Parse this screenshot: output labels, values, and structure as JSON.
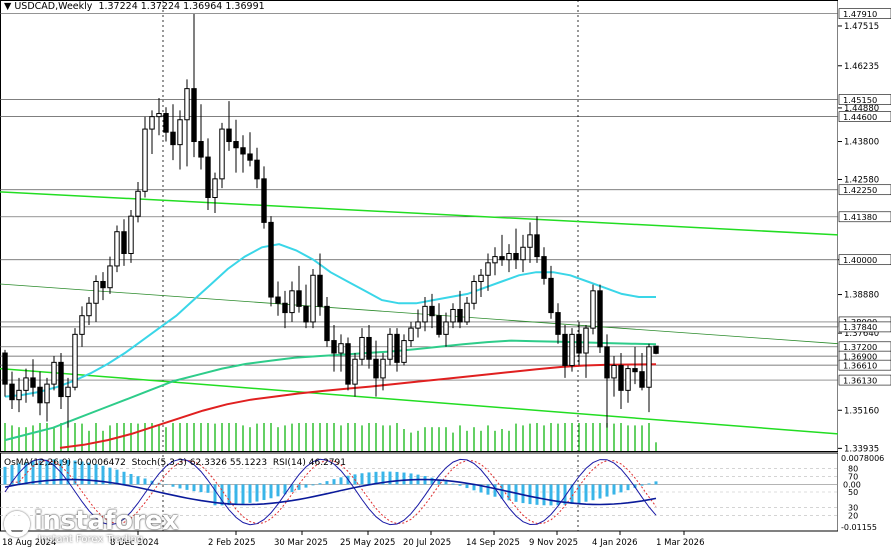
{
  "header": {
    "symbol": "USDCAD,Weekly",
    "ohlc": "1.37224 1.37224 1.36964 1.36991",
    "arrow": "▼"
  },
  "sub_header": {
    "osma": "OsMA(12,26,9) -0.0006472",
    "stoch": "Stoch(5,3,3) 62.3326 55.1223",
    "rsi": "RSI(14) 46.2791"
  },
  "logo": {
    "brand": "instaforex",
    "tagline": "Instant Forex Trading"
  },
  "colors": {
    "ma_fast": "#3ad6e8",
    "ma_mid": "#2ecc8a",
    "ma_slow": "#e02020",
    "channel": "#22dd22",
    "osma_bar": "#39b5e8",
    "stoch_main": "#1a1aa6",
    "stoch_signal": "#e03030",
    "volume": "#22bb22"
  },
  "chart_data": {
    "type": "candlestick",
    "timeframe": "Weekly",
    "symbol": "USDCAD",
    "price_axis_ticks": [
      "1.47515",
      "1.46235",
      "1.44880",
      "1.43800",
      "1.42580",
      "1.40000",
      "1.38880",
      "1.37640",
      "1.35160",
      "1.33935"
    ],
    "price_level_labels": [
      {
        "value": 1.4791,
        "label": "1.47910"
      },
      {
        "value": 1.4515,
        "label": "1.45150"
      },
      {
        "value": 1.446,
        "label": "1.44600"
      },
      {
        "value": 1.4225,
        "label": "1.42250"
      },
      {
        "value": 1.4138,
        "label": "1.41380"
      },
      {
        "value": 1.4,
        "label": "1.40000"
      },
      {
        "value": 1.38,
        "label": "1.38000"
      },
      {
        "value": 1.3784,
        "label": "1.37840"
      },
      {
        "value": 1.372,
        "label": "1.37200"
      },
      {
        "value": 1.369,
        "label": "1.36900"
      },
      {
        "value": 1.3661,
        "label": "1.36610"
      },
      {
        "value": 1.3613,
        "label": "1.36130"
      }
    ],
    "x_labels": [
      "18 Aug 2024",
      "8 Dec 2024",
      "2 Feb 2025",
      "30 Mar 2025",
      "25 May 2025",
      "20 Jul 2025",
      "14 Sep 2025",
      "9 Nov 2025",
      "4 Jan 2026",
      "1 Mar 2026"
    ],
    "y_range": [
      1.3385,
      1.4835
    ],
    "candles": [
      [
        1.37,
        1.371,
        1.356,
        1.36
      ],
      [
        1.36,
        1.364,
        1.352,
        1.355
      ],
      [
        1.355,
        1.362,
        1.351,
        1.358
      ],
      [
        1.358,
        1.365,
        1.354,
        1.362
      ],
      [
        1.362,
        1.368,
        1.356,
        1.359
      ],
      [
        1.359,
        1.364,
        1.35,
        1.354
      ],
      [
        1.354,
        1.362,
        1.348,
        1.36
      ],
      [
        1.36,
        1.369,
        1.358,
        1.367
      ],
      [
        1.367,
        1.37,
        1.352,
        1.356
      ],
      [
        1.356,
        1.362,
        1.346,
        1.359
      ],
      [
        1.359,
        1.378,
        1.358,
        1.376
      ],
      [
        1.376,
        1.385,
        1.372,
        1.382
      ],
      [
        1.382,
        1.388,
        1.379,
        1.386
      ],
      [
        1.386,
        1.395,
        1.38,
        1.393
      ],
      [
        1.393,
        1.396,
        1.387,
        1.391
      ],
      [
        1.391,
        1.401,
        1.389,
        1.398
      ],
      [
        1.398,
        1.411,
        1.396,
        1.409
      ],
      [
        1.409,
        1.413,
        1.398,
        1.402
      ],
      [
        1.402,
        1.416,
        1.399,
        1.414
      ],
      [
        1.414,
        1.425,
        1.412,
        1.422
      ],
      [
        1.422,
        1.446,
        1.42,
        1.442
      ],
      [
        1.442,
        1.448,
        1.434,
        1.446
      ],
      [
        1.446,
        1.452,
        1.44,
        1.447
      ],
      [
        1.447,
        1.449,
        1.438,
        1.441
      ],
      [
        1.441,
        1.45,
        1.432,
        1.437
      ],
      [
        1.437,
        1.448,
        1.429,
        1.445
      ],
      [
        1.445,
        1.458,
        1.43,
        1.455
      ],
      [
        1.455,
        1.479,
        1.433,
        1.438
      ],
      [
        1.438,
        1.45,
        1.429,
        1.433
      ],
      [
        1.433,
        1.439,
        1.416,
        1.42
      ],
      [
        1.42,
        1.428,
        1.415,
        1.426
      ],
      [
        1.426,
        1.444,
        1.423,
        1.442
      ],
      [
        1.442,
        1.451,
        1.435,
        1.438
      ],
      [
        1.438,
        1.445,
        1.428,
        1.436
      ],
      [
        1.436,
        1.44,
        1.428,
        1.434
      ],
      [
        1.434,
        1.441,
        1.43,
        1.432
      ],
      [
        1.432,
        1.436,
        1.423,
        1.426
      ],
      [
        1.426,
        1.43,
        1.41,
        1.412
      ],
      [
        1.412,
        1.414,
        1.385,
        1.388
      ],
      [
        1.388,
        1.393,
        1.382,
        1.386
      ],
      [
        1.386,
        1.39,
        1.378,
        1.383
      ],
      [
        1.383,
        1.393,
        1.38,
        1.39
      ],
      [
        1.39,
        1.398,
        1.383,
        1.385
      ],
      [
        1.385,
        1.392,
        1.378,
        1.38
      ],
      [
        1.38,
        1.397,
        1.378,
        1.395
      ],
      [
        1.395,
        1.402,
        1.382,
        1.385
      ],
      [
        1.385,
        1.388,
        1.372,
        1.374
      ],
      [
        1.374,
        1.379,
        1.364,
        1.37
      ],
      [
        1.37,
        1.376,
        1.364,
        1.373
      ],
      [
        1.373,
        1.375,
        1.358,
        1.36
      ],
      [
        1.36,
        1.37,
        1.356,
        1.368
      ],
      [
        1.368,
        1.378,
        1.366,
        1.375
      ],
      [
        1.375,
        1.379,
        1.365,
        1.368
      ],
      [
        1.368,
        1.374,
        1.356,
        1.362
      ],
      [
        1.362,
        1.37,
        1.358,
        1.368
      ],
      [
        1.368,
        1.378,
        1.366,
        1.376
      ],
      [
        1.376,
        1.378,
        1.364,
        1.367
      ],
      [
        1.367,
        1.376,
        1.366,
        1.374
      ],
      [
        1.374,
        1.38,
        1.372,
        1.378
      ],
      [
        1.378,
        1.384,
        1.375,
        1.38
      ],
      [
        1.38,
        1.388,
        1.377,
        1.385
      ],
      [
        1.385,
        1.389,
        1.378,
        1.382
      ],
      [
        1.382,
        1.386,
        1.375,
        1.376
      ],
      [
        1.376,
        1.383,
        1.372,
        1.38
      ],
      [
        1.38,
        1.386,
        1.378,
        1.384
      ],
      [
        1.384,
        1.39,
        1.378,
        1.38
      ],
      [
        1.38,
        1.388,
        1.379,
        1.386
      ],
      [
        1.386,
        1.395,
        1.384,
        1.393
      ],
      [
        1.393,
        1.397,
        1.388,
        1.395
      ],
      [
        1.395,
        1.402,
        1.39,
        1.399
      ],
      [
        1.399,
        1.404,
        1.395,
        1.401
      ],
      [
        1.401,
        1.408,
        1.398,
        1.4
      ],
      [
        1.4,
        1.405,
        1.396,
        1.402
      ],
      [
        1.402,
        1.41,
        1.397,
        1.4
      ],
      [
        1.4,
        1.408,
        1.396,
        1.404
      ],
      [
        1.404,
        1.412,
        1.399,
        1.408
      ],
      [
        1.408,
        1.414,
        1.399,
        1.401
      ],
      [
        1.401,
        1.404,
        1.392,
        1.394
      ],
      [
        1.394,
        1.398,
        1.381,
        1.383
      ],
      [
        1.383,
        1.386,
        1.373,
        1.376
      ],
      [
        1.376,
        1.379,
        1.362,
        1.366
      ],
      [
        1.366,
        1.378,
        1.364,
        1.376
      ],
      [
        1.376,
        1.38,
        1.366,
        1.37
      ],
      [
        1.37,
        1.379,
        1.362,
        1.378
      ],
      [
        1.378,
        1.392,
        1.376,
        1.39
      ],
      [
        1.39,
        1.392,
        1.37,
        1.372
      ],
      [
        1.372,
        1.376,
        1.346,
        1.362
      ],
      [
        1.362,
        1.369,
        1.356,
        1.366
      ],
      [
        1.366,
        1.37,
        1.352,
        1.358
      ],
      [
        1.358,
        1.366,
        1.354,
        1.365
      ],
      [
        1.365,
        1.372,
        1.36,
        1.364
      ],
      [
        1.364,
        1.37,
        1.358,
        1.359
      ],
      [
        1.359,
        1.373,
        1.351,
        1.372
      ],
      [
        1.3722,
        1.3722,
        1.3696,
        1.3699
      ]
    ],
    "ma_fast": [
      1.356,
      1.3565,
      1.3575,
      1.359,
      1.361,
      1.3635,
      1.3665,
      1.37,
      1.374,
      1.378,
      1.382,
      1.387,
      1.392,
      1.397,
      1.401,
      1.404,
      1.405,
      1.403,
      1.4,
      1.396,
      1.393,
      1.39,
      1.387,
      1.386,
      1.386,
      1.387,
      1.388,
      1.389,
      1.391,
      1.393,
      1.395,
      1.396,
      1.396,
      1.395,
      1.393,
      1.391,
      1.389,
      1.388,
      1.388
    ],
    "ma_mid": [
      1.342,
      1.344,
      1.346,
      1.349,
      1.352,
      1.355,
      1.358,
      1.361,
      1.363,
      1.365,
      1.3665,
      1.3675,
      1.3685,
      1.369,
      1.3695,
      1.37,
      1.3705,
      1.3712,
      1.372,
      1.3728,
      1.3735,
      1.374,
      1.3738,
      1.3736,
      1.3734,
      1.3732,
      1.373,
      1.3728
    ],
    "ma_slow": [
      1.3395,
      1.3405,
      1.342,
      1.344,
      1.3465,
      1.349,
      1.3515,
      1.3535,
      1.355,
      1.356,
      1.357,
      1.3578,
      1.3585,
      1.3592,
      1.36,
      1.3608,
      1.3616,
      1.3624,
      1.3632,
      1.364,
      1.3648,
      1.3655,
      1.366,
      1.3662,
      1.3663,
      1.3664
    ],
    "osma_range": [
      -0.01155,
      0.0078006
    ],
    "osma_axis_labels": [
      "0.0078006",
      "0.00",
      "-0.01155"
    ],
    "stoch_rsi_axis_labels": [
      "80",
      "70",
      "50",
      "30",
      "20"
    ]
  }
}
